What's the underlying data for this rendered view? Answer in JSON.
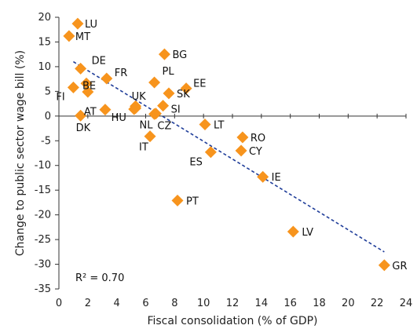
{
  "chart_data": {
    "type": "scatter",
    "title": "",
    "xlabel": "Fiscal consolidation (% of GDP)",
    "ylabel": "Change to public sector wage bill (%)",
    "xlim": [
      0,
      24
    ],
    "ylim": [
      -35,
      20
    ],
    "xticks": [
      "0",
      "2",
      "4",
      "6",
      "8",
      "10",
      "12",
      "14",
      "16",
      "18",
      "20",
      "22",
      "24"
    ],
    "yticks": [
      "20",
      "15",
      "10",
      "5",
      "0",
      "-5",
      "-10",
      "-15",
      "-20",
      "-25",
      "-30",
      "-35"
    ],
    "grid": false,
    "marker_color": "#f7941d",
    "trend_color": "#1f3d99",
    "annotation": "R² = 0.70",
    "trendline": {
      "x1": 1.0,
      "y1": 11.0,
      "x2": 22.5,
      "y2": -27.5
    },
    "points": [
      {
        "label": "LU",
        "x": 1.3,
        "y": 18.7
      },
      {
        "label": "MT",
        "x": 0.7,
        "y": 16.2
      },
      {
        "label": "DE",
        "x": 1.5,
        "y": 9.6
      },
      {
        "label": "BG",
        "x": 7.3,
        "y": 12.5
      },
      {
        "label": "FR",
        "x": 3.3,
        "y": 7.6
      },
      {
        "label": "BE",
        "x": 1.9,
        "y": 6.6
      },
      {
        "label": "PL",
        "x": 6.6,
        "y": 6.8
      },
      {
        "label": "EE",
        "x": 8.8,
        "y": 5.6
      },
      {
        "label": "FI",
        "x": 1.0,
        "y": 5.8
      },
      {
        "label": "",
        "x": 2.0,
        "y": 4.9
      },
      {
        "label": "SK",
        "x": 7.6,
        "y": 4.6
      },
      {
        "label": "AT",
        "x": 3.2,
        "y": 1.3
      },
      {
        "label": "UK",
        "x": 5.3,
        "y": 2.0
      },
      {
        "label": "SI",
        "x": 7.2,
        "y": 2.1
      },
      {
        "label": "",
        "x": 5.2,
        "y": 1.4
      },
      {
        "label": "DK",
        "x": 1.5,
        "y": 0.1
      },
      {
        "label": "HU",
        "x": 5.3,
        "y": 1.6
      },
      {
        "label": "NL",
        "x": 6.6,
        "y": 0.4
      },
      {
        "label": "CZ",
        "x": 6.7,
        "y": 0.5
      },
      {
        "label": "LT",
        "x": 10.1,
        "y": -1.7
      },
      {
        "label": "RO",
        "x": 12.7,
        "y": -4.3
      },
      {
        "label": "IT",
        "x": 6.3,
        "y": -4.1
      },
      {
        "label": "ES",
        "x": 10.5,
        "y": -7.3
      },
      {
        "label": "CY",
        "x": 12.6,
        "y": -7.0
      },
      {
        "label": "IE",
        "x": 14.1,
        "y": -12.3
      },
      {
        "label": "PT",
        "x": 8.2,
        "y": -17.1
      },
      {
        "label": "LV",
        "x": 16.2,
        "y": -23.4
      },
      {
        "label": "GR",
        "x": 22.5,
        "y": -30.2
      }
    ]
  }
}
